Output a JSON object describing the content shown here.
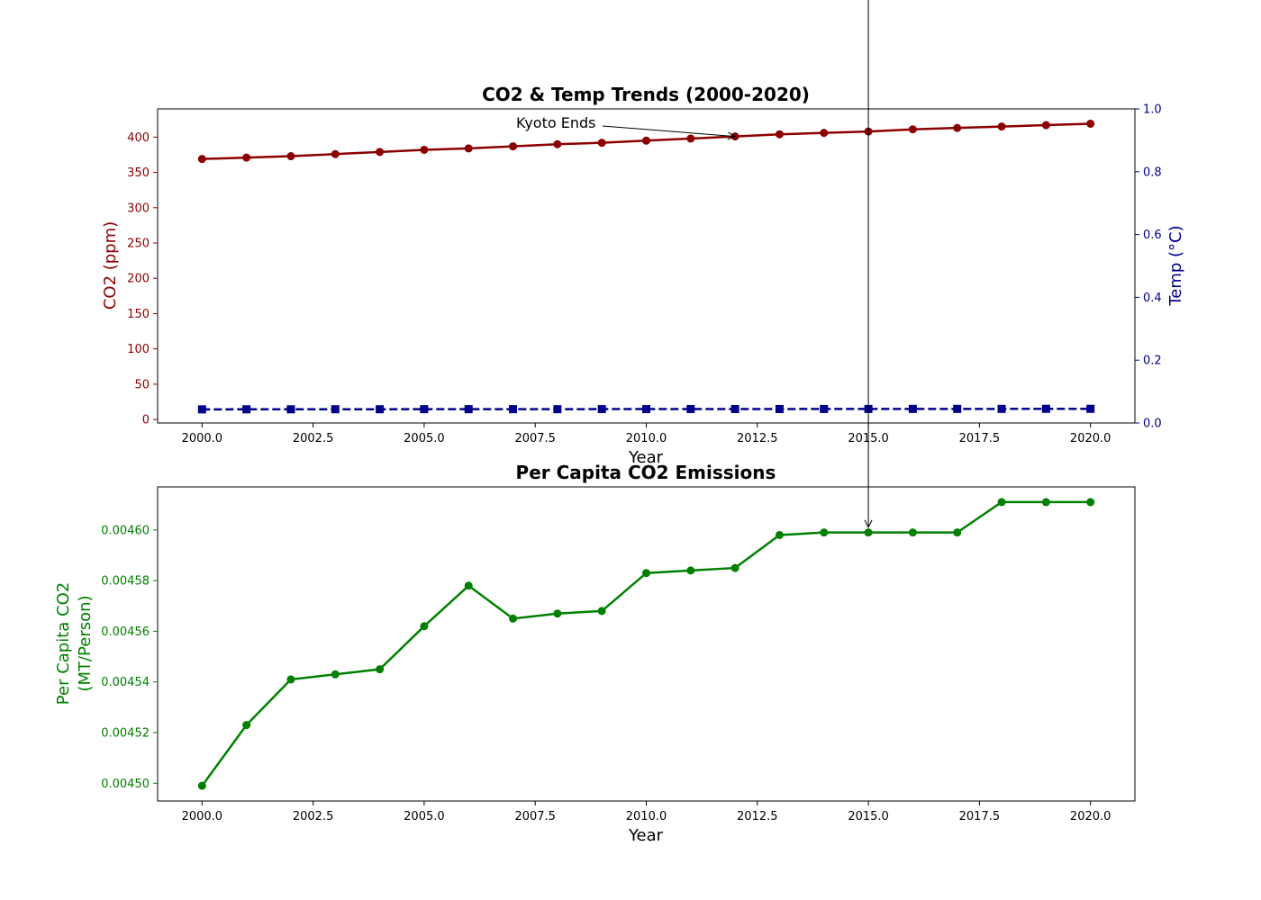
{
  "chart_data": [
    {
      "type": "line",
      "title": "CO2 & Temp Trends (2000-2020)",
      "xlabel": "Year",
      "ylabel_left": "CO2 (ppm)",
      "ylabel_right": "Temp (°C)",
      "xlim": [
        1999,
        2021
      ],
      "ylim_left": [
        -5,
        440
      ],
      "ylim_right": [
        0,
        1.0
      ],
      "x_ticks": [
        "2000.0",
        "2002.5",
        "2005.0",
        "2007.5",
        "2010.0",
        "2012.5",
        "2015.0",
        "2017.5",
        "2020.0"
      ],
      "y_ticks_left": [
        "0",
        "50",
        "100",
        "150",
        "200",
        "250",
        "300",
        "350",
        "400"
      ],
      "y_ticks_right": [
        "0.0",
        "0.2",
        "0.4",
        "0.6",
        "0.8",
        "1.0"
      ],
      "x": [
        2000,
        2001,
        2002,
        2003,
        2004,
        2005,
        2006,
        2007,
        2008,
        2009,
        2010,
        2011,
        2012,
        2013,
        2014,
        2015,
        2016,
        2017,
        2018,
        2019,
        2020
      ],
      "series": [
        {
          "axis": "left",
          "color": "#8b0000",
          "style": "solid",
          "marker": "circle",
          "values": [
            369,
            371,
            373,
            376,
            379,
            382,
            384,
            387,
            390,
            392,
            395,
            398,
            401,
            404,
            406,
            408,
            411,
            413,
            415,
            417,
            419
          ]
        },
        {
          "axis": "left",
          "color": "#00008b",
          "style": "dashed",
          "marker": "square",
          "values": [
            14.3,
            14.4,
            14.4,
            14.5,
            14.5,
            14.6,
            14.6,
            14.6,
            14.6,
            14.7,
            14.7,
            14.8,
            14.8,
            14.8,
            14.9,
            14.9,
            15.0,
            15.0,
            15.0,
            15.1,
            15.1
          ]
        }
      ],
      "annotation": {
        "text": "Kyoto Ends",
        "x": 2012,
        "y": 401
      }
    },
    {
      "type": "line",
      "title": "Per Capita CO2 Emissions",
      "xlabel": "Year",
      "ylabel_lines": [
        "Per Capita CO2",
        "(MT/Person)"
      ],
      "xlim": [
        1999,
        2021
      ],
      "ylim": [
        0.004493,
        0.004617
      ],
      "x_ticks": [
        "2000.0",
        "2002.5",
        "2005.0",
        "2007.5",
        "2010.0",
        "2012.5",
        "2015.0",
        "2017.5",
        "2020.0"
      ],
      "y_ticks": [
        "0.00450",
        "0.00452",
        "0.00454",
        "0.00456",
        "0.00458",
        "0.00460"
      ],
      "x": [
        2000,
        2001,
        2002,
        2003,
        2004,
        2005,
        2006,
        2007,
        2008,
        2009,
        2010,
        2011,
        2012,
        2013,
        2014,
        2015,
        2016,
        2017,
        2018,
        2019,
        2020
      ],
      "series": [
        {
          "color": "#008000",
          "style": "solid",
          "marker": "circle",
          "values": [
            0.004499,
            0.004523,
            0.004541,
            0.004543,
            0.004545,
            0.004562,
            0.004578,
            0.004565,
            0.004567,
            0.004568,
            0.004583,
            0.004584,
            0.004585,
            0.004598,
            0.004599,
            0.004599,
            0.004599,
            0.004599,
            0.004611,
            0.004611,
            0.004611
          ]
        }
      ],
      "annotation_arrow": {
        "x": 2015,
        "y": 0.0046
      }
    }
  ]
}
